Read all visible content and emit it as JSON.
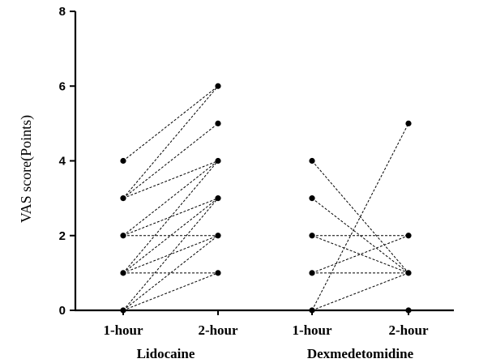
{
  "chart_data": {
    "type": "line",
    "title": "",
    "ylabel": "VAS score(Points)",
    "xlabel": "",
    "ylim": [
      0,
      8
    ],
    "yticks": [
      0,
      2,
      4,
      6,
      8
    ],
    "grid": false,
    "categories": [
      "1-hour",
      "2-hour",
      "1-hour",
      "2-hour"
    ],
    "groups": [
      {
        "label": "Lidocaine",
        "pairs": [
          [
            4,
            6
          ],
          [
            3,
            6
          ],
          [
            3,
            5
          ],
          [
            2,
            4
          ],
          [
            2,
            2
          ],
          [
            1,
            4
          ],
          [
            1,
            3
          ],
          [
            1,
            2
          ],
          [
            1,
            1
          ],
          [
            0,
            3
          ],
          [
            0,
            2
          ],
          [
            3,
            4
          ],
          [
            2,
            3
          ],
          [
            0,
            1
          ]
        ]
      },
      {
        "label": "Dexmedetomidine",
        "pairs": [
          [
            4,
            1
          ],
          [
            3,
            1
          ],
          [
            2,
            2
          ],
          [
            2,
            1
          ],
          [
            1,
            2
          ],
          [
            1,
            1
          ],
          [
            0,
            5
          ],
          [
            0,
            1
          ]
        ],
        "extra_points_2h": [
          0
        ]
      }
    ]
  }
}
